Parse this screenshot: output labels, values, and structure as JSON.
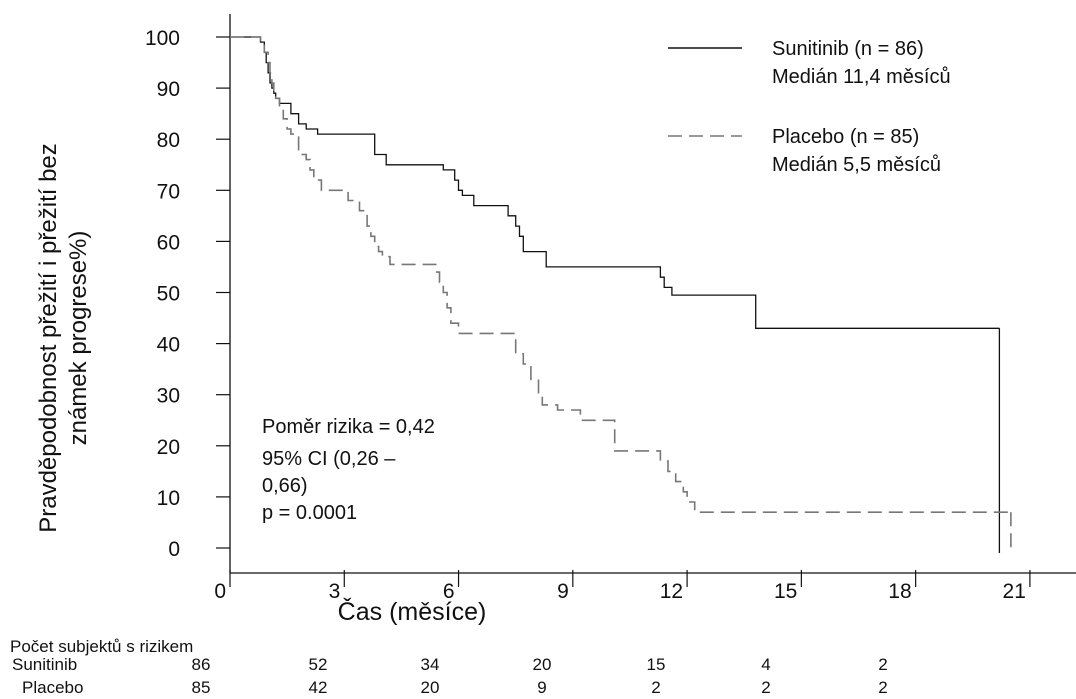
{
  "chart_data": {
    "type": "line",
    "ylabel_line1": "Pravděpodobnost přežití i přežití bez",
    "ylabel_line2": "známek progrese%)",
    "xlabel": "Čas (měsíce)",
    "xlim": [
      0,
      22
    ],
    "ylim": [
      0,
      100
    ],
    "x_ticks": [
      0,
      3,
      6,
      9,
      12,
      15,
      18,
      21
    ],
    "y_ticks": [
      0,
      10,
      20,
      30,
      40,
      50,
      60,
      70,
      80,
      90,
      100
    ],
    "series": [
      {
        "name": "Sunitinib (n = 86)",
        "median_label": "Medián 11,4 měsíců",
        "style": "solid",
        "color": "#111111",
        "x": [
          0,
          0.4,
          0.8,
          0.9,
          0.95,
          1.0,
          1.05,
          1.1,
          1.15,
          1.2,
          1.3,
          1.4,
          1.6,
          1.8,
          2.0,
          2.3,
          2.6,
          3.0,
          3.8,
          4.1,
          5.2,
          5.6,
          5.9,
          6.0,
          6.1,
          6.4,
          7.3,
          7.5,
          7.6,
          7.7,
          8.3,
          11.3,
          11.4,
          11.6,
          13.8,
          20.2
        ],
        "y": [
          100,
          100,
          99,
          97,
          95,
          93,
          91,
          90,
          89,
          88,
          87,
          87,
          85,
          83,
          82,
          81,
          81,
          81,
          77,
          75,
          75,
          74,
          72,
          70,
          69,
          67,
          65,
          63,
          61,
          58,
          55,
          53,
          51,
          49.5,
          43,
          43
        ]
      },
      {
        "name": "Placebo (n = 85)",
        "median_label": "Medián 5,5 měsíců",
        "style": "dashed",
        "color": "#777777",
        "x": [
          0,
          0.5,
          0.8,
          0.9,
          1.0,
          1.05,
          1.1,
          1.15,
          1.2,
          1.3,
          1.4,
          1.5,
          1.6,
          1.8,
          2.0,
          2.1,
          2.2,
          2.4,
          3.1,
          3.4,
          3.6,
          3.7,
          3.8,
          3.9,
          4.0,
          4.2,
          5.3,
          5.4,
          5.5,
          5.6,
          5.7,
          5.8,
          6.0,
          7.4,
          7.5,
          7.7,
          7.9,
          8.1,
          8.2,
          8.6,
          9.2,
          9.7,
          10.1,
          11.1,
          11.3,
          11.5,
          11.7,
          11.9,
          12.0,
          12.2,
          20.5
        ],
        "y": [
          100,
          100,
          99,
          97,
          95,
          93,
          91,
          89,
          88,
          86,
          84,
          82,
          81,
          77,
          76,
          74,
          72,
          70,
          68,
          66,
          63,
          61,
          59,
          58,
          57,
          55.5,
          55.5,
          54,
          52,
          50,
          47,
          44,
          42,
          42,
          38,
          36,
          33,
          30,
          28,
          27,
          25,
          25,
          19,
          19,
          17,
          15,
          13,
          11,
          9,
          7,
          7
        ]
      }
    ],
    "annotation": {
      "line1": "Poměr rizika = 0,42",
      "line2": "95% CI (0,26 –",
      "line3": "0,66)",
      "line4": "p = 0.0001"
    },
    "risk_table": {
      "title": "Počet subjektů s rizikem",
      "rows": [
        {
          "label": "Sunitinib",
          "values": [
            "86",
            "52",
            "34",
            "20",
            "15",
            "4",
            "2"
          ]
        },
        {
          "label": "Placebo",
          "values": [
            "85",
            "42",
            "20",
            "9",
            "2",
            "2",
            "2"
          ]
        }
      ]
    }
  }
}
